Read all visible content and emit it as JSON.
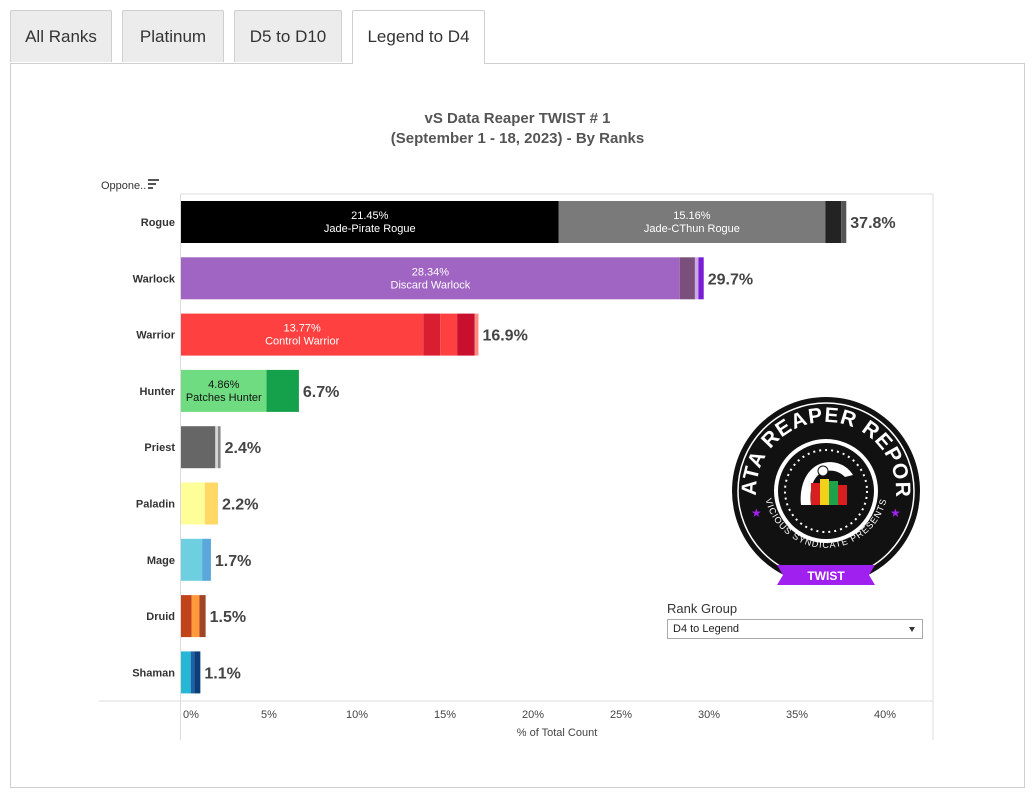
{
  "tabs": [
    {
      "label": "All Ranks",
      "active": false
    },
    {
      "label": "Platinum",
      "active": false
    },
    {
      "label": "D5 to D10",
      "active": false
    },
    {
      "label": "Legend to D4",
      "active": true
    }
  ],
  "title_line1": "vS Data Reaper TWIST # 1",
  "title_line2": "(September 1 - 18, 2023) - By Ranks",
  "sort_label": "Oppone..",
  "rank_group": {
    "label": "Rank Group",
    "selected": "D4 to Legend"
  },
  "logo": {
    "ring_text": "DATA REAPER REPORT",
    "sub_text": "VICIOUS SYNDICATE PRESENTS",
    "ribbon": "TWIST",
    "colors": {
      "ring": "#111111",
      "ribbon": "#a020f0",
      "stars": "#a020f0"
    }
  },
  "chart_data": {
    "type": "bar",
    "orientation": "horizontal",
    "stacked": true,
    "title": "vS Data Reaper TWIST # 1 (September 1 - 18, 2023) - By Ranks",
    "xlabel": "% of Total Count",
    "ylabel": "",
    "xlim": [
      0,
      40
    ],
    "xticks": [
      0,
      5,
      10,
      15,
      20,
      25,
      30,
      35,
      40
    ],
    "xtick_labels": [
      "0%",
      "5%",
      "10%",
      "15%",
      "20%",
      "25%",
      "30%",
      "35%",
      "40%"
    ],
    "grid": false,
    "categories": [
      {
        "name": "Rogue",
        "total_label": "37.8%",
        "segments": [
          {
            "value": 21.45,
            "label": "21.45%",
            "archetype": "Jade-Pirate Rogue",
            "color": "#000000"
          },
          {
            "value": 15.16,
            "label": "15.16%",
            "archetype": "Jade-CThun Rogue",
            "color": "#7a7a7a"
          },
          {
            "value": 0.9,
            "color": "#232323"
          },
          {
            "value": 0.29,
            "color": "#555555"
          }
        ]
      },
      {
        "name": "Warlock",
        "total_label": "29.7%",
        "segments": [
          {
            "value": 28.34,
            "label": "28.34%",
            "archetype": "Discard Warlock",
            "color": "#a064c2"
          },
          {
            "value": 0.86,
            "color": "#7b4f7c"
          },
          {
            "value": 0.2,
            "color": "#c9a9e6"
          },
          {
            "value": 0.3,
            "color": "#7a1ed6"
          }
        ]
      },
      {
        "name": "Warrior",
        "total_label": "16.9%",
        "segments": [
          {
            "value": 13.77,
            "label": "13.77%",
            "archetype": "Control Warrior",
            "color": "#ff4040"
          },
          {
            "value": 0.96,
            "color": "#d91e32"
          },
          {
            "value": 0.96,
            "color": "#ff4040"
          },
          {
            "value": 1.0,
            "color": "#c8102e"
          },
          {
            "value": 0.21,
            "color": "#ff8a80"
          }
        ]
      },
      {
        "name": "Hunter",
        "total_label": "6.7%",
        "segments": [
          {
            "value": 4.86,
            "label": "4.86%",
            "archetype": "Patches Hunter",
            "color": "#6fdc82"
          },
          {
            "value": 1.84,
            "color": "#15a04b"
          }
        ]
      },
      {
        "name": "Priest",
        "total_label": "2.4%",
        "segments": [
          {
            "value": 1.95,
            "color": "#666666"
          },
          {
            "value": 0.15,
            "color": "#d6d6d6"
          },
          {
            "value": 0.15,
            "color": "#8a8a8a"
          }
        ]
      },
      {
        "name": "Paladin",
        "total_label": "2.2%",
        "segments": [
          {
            "value": 1.35,
            "color": "#ffff99"
          },
          {
            "value": 0.75,
            "color": "#ffd866"
          }
        ]
      },
      {
        "name": "Mage",
        "total_label": "1.7%",
        "segments": [
          {
            "value": 1.2,
            "color": "#6ecfe0"
          },
          {
            "value": 0.5,
            "color": "#59a7db"
          }
        ]
      },
      {
        "name": "Druid",
        "total_label": "1.5%",
        "segments": [
          {
            "value": 0.6,
            "color": "#c0431a"
          },
          {
            "value": 0.45,
            "color": "#ff9a3c"
          },
          {
            "value": 0.35,
            "color": "#a0442a"
          }
        ]
      },
      {
        "name": "Shaman",
        "total_label": "1.1%",
        "segments": [
          {
            "value": 0.55,
            "color": "#25b7d4"
          },
          {
            "value": 0.2,
            "color": "#1a63a8"
          },
          {
            "value": 0.35,
            "color": "#0c3e7a"
          }
        ]
      }
    ]
  }
}
